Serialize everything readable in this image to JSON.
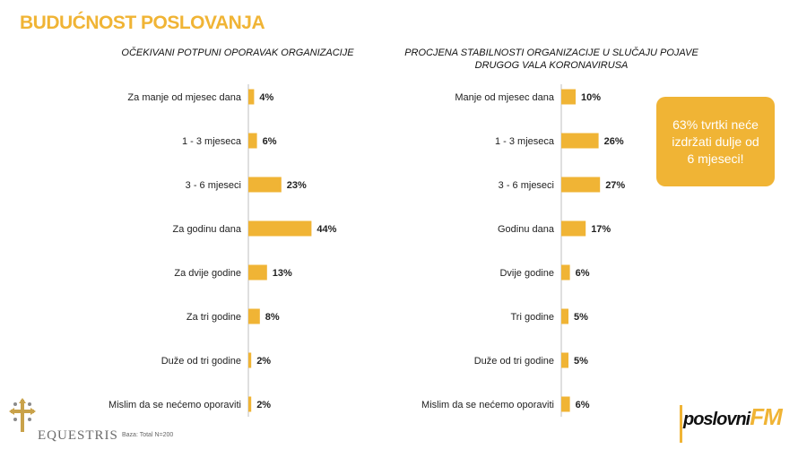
{
  "page": {
    "title": "BUDUĆNOST POSLOVANJA",
    "callout": "63% tvrtki neće izdržati dulje od 6 mjeseci!",
    "base_note": "Baza: Total N=200",
    "logo_left": "EQUESTRIS",
    "logo_right_main": "poslovni",
    "logo_right_accent": "FM"
  },
  "colors": {
    "accent": "#f0b435",
    "axis": "#bfbfbf",
    "text": "#222222"
  },
  "chart_data": [
    {
      "type": "bar",
      "orientation": "horizontal",
      "title": "OČEKIVANI POTPUNI OPORAVAK ORGANIZACIJE",
      "categories": [
        "Za manje od mjesec dana",
        "1 - 3 mjeseca",
        "3 - 6 mjeseci",
        "Za godinu dana",
        "Za dvije godine",
        "Za tri godine",
        "Duže od tri godine",
        "Mislim da se nećemo oporaviti"
      ],
      "values": [
        4,
        6,
        23,
        44,
        13,
        8,
        2,
        2
      ],
      "value_labels": [
        "4%",
        "6%",
        "23%",
        "44%",
        "13%",
        "8%",
        "2%",
        "2%"
      ],
      "xlim": [
        0,
        50
      ],
      "grid": false
    },
    {
      "type": "bar",
      "orientation": "horizontal",
      "title": "PROCJENA STABILNOSTI ORGANIZACIJE U SLUČAJU POJAVE DRUGOG VALA KORONAVIRUSA",
      "categories": [
        "Manje od mjesec dana",
        "1 - 3 mjeseca",
        "3 - 6 mjeseci",
        "Godinu dana",
        "Dvije godine",
        "Tri godine",
        "Duže od tri godine",
        "Mislim da se nećemo oporaviti"
      ],
      "values": [
        10,
        26,
        27,
        17,
        6,
        5,
        5,
        6
      ],
      "value_labels": [
        "10%",
        "26%",
        "27%",
        "17%",
        "6%",
        "5%",
        "5%",
        "6%"
      ],
      "xlim": [
        0,
        50
      ],
      "grid": false
    }
  ]
}
